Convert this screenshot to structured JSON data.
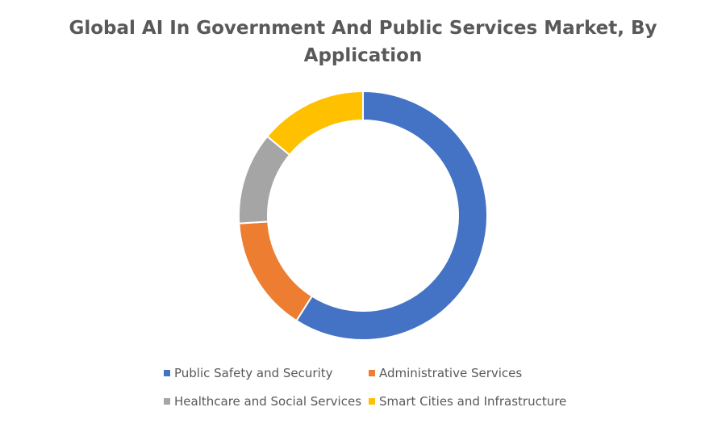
{
  "chart_data": {
    "type": "pie",
    "donut": true,
    "title_lines": [
      "Global AI In Government And Public Services Market, By",
      "Application"
    ],
    "categories": [
      "Public Safety and Security",
      "Administrative Services",
      "Healthcare and Social Services",
      "Smart Cities and Infrastructure"
    ],
    "values": [
      59,
      15,
      12,
      14
    ],
    "colors": [
      "#4472C4",
      "#ED7D31",
      "#A5A5A5",
      "#FFC000"
    ],
    "legend_position": "bottom",
    "start_angle_deg": 0,
    "direction": "clockwise"
  }
}
